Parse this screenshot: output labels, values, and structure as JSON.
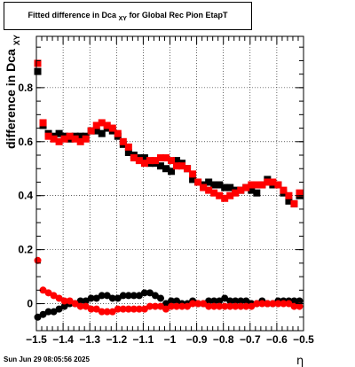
{
  "title": {
    "main": "Fitted difference in Dca",
    "subscript": "XY",
    "suffix": "for Global Rec Pion EtapT"
  },
  "timestamp": "Sun Jun 29 08:05:56 2025",
  "chart_data": {
    "type": "scatter",
    "xlabel": "η",
    "ylabel": "difference in Dca",
    "ylabel_subscript": "XY",
    "xlim": [
      -1.5,
      -0.5
    ],
    "ylim": [
      -0.1,
      0.99
    ],
    "grid": true,
    "x_ticks": [
      -1.5,
      -1.4,
      -1.3,
      -1.2,
      -1.1,
      -1,
      -0.9,
      -0.8,
      -0.7,
      -0.6,
      -0.5
    ],
    "x_tick_labels": [
      "−1.5",
      "−1.4",
      "−1.3",
      "−1.2",
      "−1.1",
      "−1",
      "−0.9",
      "−0.8",
      "−0.7",
      "−0.6",
      "−0.5"
    ],
    "y_ticks": [
      0,
      0.2,
      0.4,
      0.6,
      0.8
    ],
    "y_tick_labels": [
      "0",
      "0.2",
      "0.4",
      "0.6",
      "0.8"
    ],
    "series": [
      {
        "marker": "square",
        "color": "#000000",
        "x": [
          -1.495,
          -1.475,
          -1.455,
          -1.435,
          -1.415,
          -1.395,
          -1.375,
          -1.355,
          -1.335,
          -1.315,
          -1.295,
          -1.275,
          -1.255,
          -1.235,
          -1.215,
          -1.195,
          -1.175,
          -1.155,
          -1.135,
          -1.115,
          -1.095,
          -1.075,
          -1.055,
          -1.035,
          -1.015,
          -0.995,
          -0.975,
          -0.955,
          -0.935,
          -0.915,
          -0.895,
          -0.875,
          -0.855,
          -0.835,
          -0.815,
          -0.795,
          -0.775,
          -0.755,
          -0.735,
          -0.715,
          -0.695,
          -0.675,
          -0.655,
          -0.635,
          -0.615,
          -0.595,
          -0.575,
          -0.555,
          -0.535,
          -0.515
        ],
        "y": [
          0.86,
          0.66,
          0.63,
          0.62,
          0.63,
          0.62,
          0.61,
          0.62,
          0.62,
          0.62,
          0.64,
          0.64,
          0.63,
          0.65,
          0.64,
          0.62,
          0.59,
          0.56,
          0.55,
          0.54,
          0.54,
          0.52,
          0.52,
          0.51,
          0.5,
          0.49,
          0.53,
          0.52,
          0.5,
          0.46,
          0.45,
          0.44,
          0.45,
          0.44,
          0.44,
          0.43,
          0.43,
          0.42,
          0.42,
          0.43,
          0.42,
          0.41,
          0.44,
          0.46,
          0.44,
          0.44,
          0.41,
          0.38,
          0.37,
          0.4
        ]
      },
      {
        "marker": "square",
        "color": "#ff0000",
        "x": [
          -1.495,
          -1.475,
          -1.455,
          -1.435,
          -1.415,
          -1.395,
          -1.375,
          -1.355,
          -1.335,
          -1.315,
          -1.295,
          -1.275,
          -1.255,
          -1.235,
          -1.215,
          -1.195,
          -1.175,
          -1.155,
          -1.135,
          -1.115,
          -1.095,
          -1.075,
          -1.055,
          -1.035,
          -1.015,
          -0.995,
          -0.975,
          -0.955,
          -0.935,
          -0.915,
          -0.895,
          -0.875,
          -0.855,
          -0.835,
          -0.815,
          -0.795,
          -0.775,
          -0.755,
          -0.735,
          -0.715,
          -0.695,
          -0.675,
          -0.655,
          -0.635,
          -0.615,
          -0.595,
          -0.575,
          -0.555,
          -0.535,
          -0.515
        ],
        "y": [
          0.89,
          0.67,
          0.62,
          0.61,
          0.6,
          0.61,
          0.62,
          0.61,
          0.6,
          0.61,
          0.64,
          0.66,
          0.67,
          0.66,
          0.65,
          0.63,
          0.6,
          0.58,
          0.54,
          0.53,
          0.52,
          0.53,
          0.53,
          0.54,
          0.54,
          0.53,
          0.51,
          0.51,
          0.5,
          0.48,
          0.45,
          0.43,
          0.42,
          0.41,
          0.4,
          0.39,
          0.4,
          0.41,
          0.42,
          0.43,
          0.44,
          0.44,
          0.44,
          0.45,
          0.45,
          0.44,
          0.42,
          0.4,
          0.37,
          0.41
        ]
      },
      {
        "marker": "circle",
        "color": "#000000",
        "x": [
          -1.495,
          -1.475,
          -1.455,
          -1.435,
          -1.415,
          -1.395,
          -1.375,
          -1.355,
          -1.335,
          -1.315,
          -1.295,
          -1.275,
          -1.255,
          -1.235,
          -1.215,
          -1.195,
          -1.175,
          -1.155,
          -1.135,
          -1.115,
          -1.095,
          -1.075,
          -1.055,
          -1.035,
          -1.015,
          -0.995,
          -0.975,
          -0.955,
          -0.935,
          -0.915,
          -0.895,
          -0.875,
          -0.855,
          -0.835,
          -0.815,
          -0.795,
          -0.775,
          -0.755,
          -0.735,
          -0.715,
          -0.695,
          -0.675,
          -0.655,
          -0.635,
          -0.615,
          -0.595,
          -0.575,
          -0.555,
          -0.535,
          -0.515
        ],
        "y": [
          -0.05,
          -0.04,
          -0.03,
          -0.03,
          -0.02,
          -0.01,
          0.0,
          0.0,
          0.01,
          0.01,
          0.02,
          0.02,
          0.03,
          0.03,
          0.02,
          0.02,
          0.03,
          0.03,
          0.03,
          0.03,
          0.04,
          0.04,
          0.03,
          0.02,
          0.0,
          0.01,
          0.01,
          0.0,
          0.0,
          0.01,
          0.0,
          0.0,
          0.01,
          0.01,
          0.01,
          0.02,
          0.01,
          0.01,
          0.01,
          0.01,
          0.0,
          0.0,
          0.01,
          0.0,
          0.0,
          0.01,
          0.01,
          0.01,
          0.01,
          0.01
        ]
      },
      {
        "marker": "circle",
        "color": "#ff0000",
        "x": [
          -1.495,
          -1.475,
          -1.455,
          -1.435,
          -1.415,
          -1.395,
          -1.375,
          -1.355,
          -1.335,
          -1.315,
          -1.295,
          -1.275,
          -1.255,
          -1.235,
          -1.215,
          -1.195,
          -1.175,
          -1.155,
          -1.135,
          -1.115,
          -1.095,
          -1.075,
          -1.055,
          -1.035,
          -1.015,
          -0.995,
          -0.975,
          -0.955,
          -0.935,
          -0.915,
          -0.895,
          -0.875,
          -0.855,
          -0.835,
          -0.815,
          -0.795,
          -0.775,
          -0.755,
          -0.735,
          -0.715,
          -0.695,
          -0.675,
          -0.655,
          -0.635,
          -0.615,
          -0.595,
          -0.575,
          -0.555,
          -0.535,
          -0.515
        ],
        "y": [
          0.16,
          0.05,
          0.04,
          0.03,
          0.02,
          0.01,
          0.01,
          0.0,
          -0.01,
          -0.01,
          -0.02,
          -0.02,
          -0.03,
          -0.03,
          -0.03,
          -0.02,
          -0.02,
          -0.02,
          -0.02,
          -0.02,
          -0.02,
          -0.01,
          -0.01,
          -0.01,
          -0.02,
          -0.01,
          -0.01,
          -0.01,
          -0.01,
          0.0,
          0.0,
          0.0,
          -0.01,
          -0.01,
          -0.01,
          -0.01,
          -0.01,
          -0.01,
          -0.01,
          -0.01,
          -0.01,
          0.0,
          0.0,
          0.0,
          0.0,
          0.0,
          0.0,
          0.0,
          -0.01,
          -0.01
        ]
      }
    ]
  }
}
